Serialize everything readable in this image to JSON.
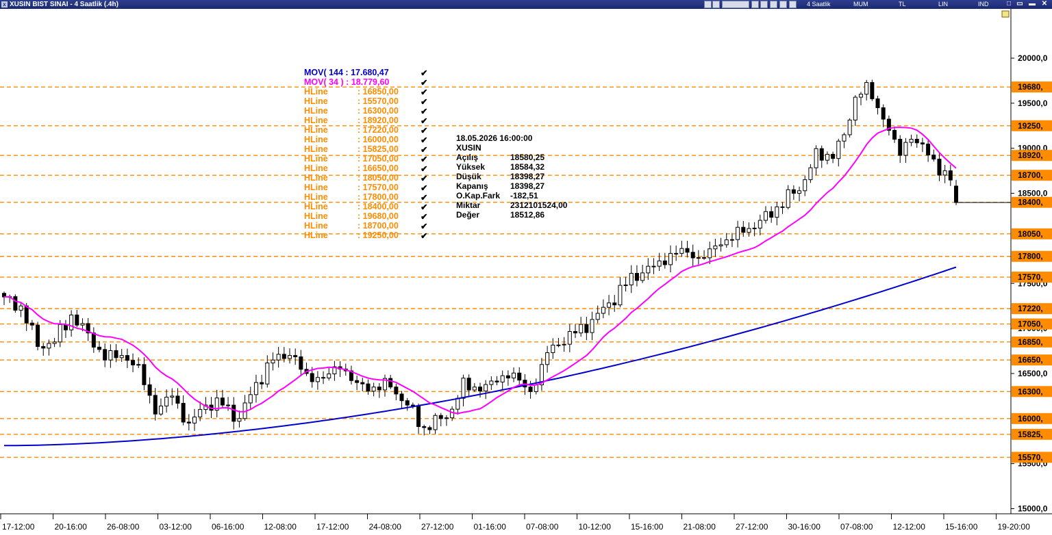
{
  "window": {
    "title": "XUSIN BIST SINAI - 4 Saatlik (.4h)",
    "period_label": "4 Saatlik",
    "chart_modes": [
      "MUM",
      "TL",
      "LIN",
      "IND"
    ]
  },
  "colors": {
    "mov144": "#0000cc",
    "mov34": "#ff00ff",
    "hline": "#ff8c00",
    "candle_up": "#ffffff",
    "candle_down": "#000000"
  },
  "legend": {
    "mov144": {
      "label": "MOV( 144 : 17.680,47"
    },
    "mov34": {
      "label": "MOV( 34 ) : 18.779,60"
    },
    "hlines": [
      {
        "name": "HLine",
        "value": ": 16850,00"
      },
      {
        "name": "HLine",
        "value": ": 15570,00"
      },
      {
        "name": "HLine",
        "value": ": 16300,00"
      },
      {
        "name": "HLine",
        "value": ": 18920,00"
      },
      {
        "name": "HLine",
        "value": ": 17220,00"
      },
      {
        "name": "HLine",
        "value": ": 16000,00"
      },
      {
        "name": "HLine",
        "value": ": 15825,00"
      },
      {
        "name": "HLine",
        "value": ": 17050,00"
      },
      {
        "name": "HLine",
        "value": ": 16650,00"
      },
      {
        "name": "HLine",
        "value": ": 18050,00"
      },
      {
        "name": "HLine",
        "value": ": 17570,00"
      },
      {
        "name": "HLine",
        "value": ": 17800,00"
      },
      {
        "name": "HLine",
        "value": ": 18400,00"
      },
      {
        "name": "HLine",
        "value": ": 19680,00"
      },
      {
        "name": "HLine",
        "value": ": 18700,00"
      },
      {
        "name": "HLine",
        "value": ": 19250,00"
      }
    ]
  },
  "ohlc_info": {
    "datetime": "18.05.2026  16:00:00",
    "symbol": "XUSIN",
    "rows": [
      {
        "label": "Açılış",
        "value": "18580,25"
      },
      {
        "label": "Yüksek",
        "value": "18584,32"
      },
      {
        "label": "Düşük",
        "value": "18398,27"
      },
      {
        "label": "Kapanış",
        "value": "18398,27"
      },
      {
        "label": "O.Kap.Fark",
        "value": "-182,51"
      },
      {
        "label": "Miktar",
        "value": "2312101524,00"
      },
      {
        "label": "Değer",
        "value": "18512,86"
      }
    ]
  },
  "chart_data": {
    "type": "candlestick",
    "y_axis": {
      "ticks": [
        {
          "value": 20000,
          "label": "20000,0"
        },
        {
          "value": 19500,
          "label": "19500,0"
        },
        {
          "value": 19000,
          "label": "19000,0"
        },
        {
          "value": 18500,
          "label": "18500,0"
        },
        {
          "value": 17500,
          "label": "17500,0"
        },
        {
          "value": 17000,
          "label": "17000,0"
        },
        {
          "value": 16500,
          "label": "16500,0"
        },
        {
          "value": 15500,
          "label": "15500,0"
        },
        {
          "value": 15000,
          "label": "15000,0"
        }
      ],
      "range": [
        14900,
        20550
      ]
    },
    "x_axis": {
      "ticks": [
        "17-12:00",
        "20-16:00",
        "26-08:00",
        "03-12:00",
        "06-16:00",
        "12-08:00",
        "17-12:00",
        "24-08:00",
        "27-12:00",
        "01-16:00",
        "07-08:00",
        "10-12:00",
        "15-16:00",
        "21-08:00",
        "27-12:00",
        "30-16:00",
        "07-08:00",
        "12-12:00",
        "15-16:00",
        "19-20:00"
      ]
    },
    "hlines": [
      {
        "value": 19680,
        "label": "19680,"
      },
      {
        "value": 19250,
        "label": "19250,"
      },
      {
        "value": 18920,
        "label": "18920,"
      },
      {
        "value": 18700,
        "label": "18700,"
      },
      {
        "value": 18400,
        "label": "18400,"
      },
      {
        "value": 18050,
        "label": "18050,"
      },
      {
        "value": 17800,
        "label": "17800,"
      },
      {
        "value": 17570,
        "label": "17570,"
      },
      {
        "value": 17220,
        "label": "17220,"
      },
      {
        "value": 17050,
        "label": "17050,"
      },
      {
        "value": 16850,
        "label": "16850,"
      },
      {
        "value": 16650,
        "label": "16650,"
      },
      {
        "value": 16300,
        "label": "16300,"
      },
      {
        "value": 16000,
        "label": "16000,"
      },
      {
        "value": 15825,
        "label": "15825,"
      },
      {
        "value": 15570,
        "label": "15570,"
      }
    ],
    "close_anchors": [
      [
        0,
        17350
      ],
      [
        3,
        17250
      ],
      [
        6,
        16800
      ],
      [
        9,
        16850
      ],
      [
        12,
        17150
      ],
      [
        15,
        16950
      ],
      [
        18,
        16650
      ],
      [
        21,
        16700
      ],
      [
        24,
        16600
      ],
      [
        27,
        16050
      ],
      [
        30,
        16250
      ],
      [
        33,
        15950
      ],
      [
        36,
        16150
      ],
      [
        39,
        16150
      ],
      [
        42,
        16000
      ],
      [
        45,
        16400
      ],
      [
        48,
        16650
      ],
      [
        51,
        16700
      ],
      [
        54,
        16500
      ],
      [
        57,
        16450
      ],
      [
        60,
        16550
      ],
      [
        63,
        16400
      ],
      [
        66,
        16350
      ],
      [
        69,
        16350
      ],
      [
        72,
        16150
      ],
      [
        75,
        15900
      ],
      [
        78,
        16000
      ],
      [
        80,
        16100
      ],
      [
        82,
        16350
      ],
      [
        85,
        16350
      ],
      [
        88,
        16450
      ],
      [
        91,
        16450
      ],
      [
        94,
        16300
      ],
      [
        97,
        16750
      ],
      [
        100,
        16850
      ],
      [
        103,
        17000
      ],
      [
        106,
        17150
      ],
      [
        109,
        17350
      ],
      [
        112,
        17550
      ],
      [
        115,
        17650
      ],
      [
        118,
        17800
      ],
      [
        121,
        17850
      ],
      [
        124,
        17750
      ],
      [
        127,
        17950
      ],
      [
        130,
        18000
      ],
      [
        133,
        18100
      ],
      [
        136,
        18250
      ],
      [
        139,
        18400
      ],
      [
        142,
        18550
      ],
      [
        145,
        18900
      ],
      [
        148,
        18950
      ],
      [
        150,
        19150
      ],
      [
        152,
        19550
      ],
      [
        154,
        19650
      ],
      [
        156,
        19450
      ],
      [
        158,
        19250
      ],
      [
        160,
        18950
      ],
      [
        162,
        19100
      ],
      [
        164,
        19000
      ],
      [
        166,
        18850
      ],
      [
        168,
        18750
      ],
      [
        170,
        18550
      ]
    ],
    "last_candle": {
      "open": 18580.25,
      "high": 18584.32,
      "low": 18398.27,
      "close": 18398.27
    },
    "mov34": {
      "name": "MOV( 34 )",
      "last_value": 18779.6
    },
    "mov144": {
      "name": "MOV( 144",
      "last_value": 17680.47
    }
  }
}
